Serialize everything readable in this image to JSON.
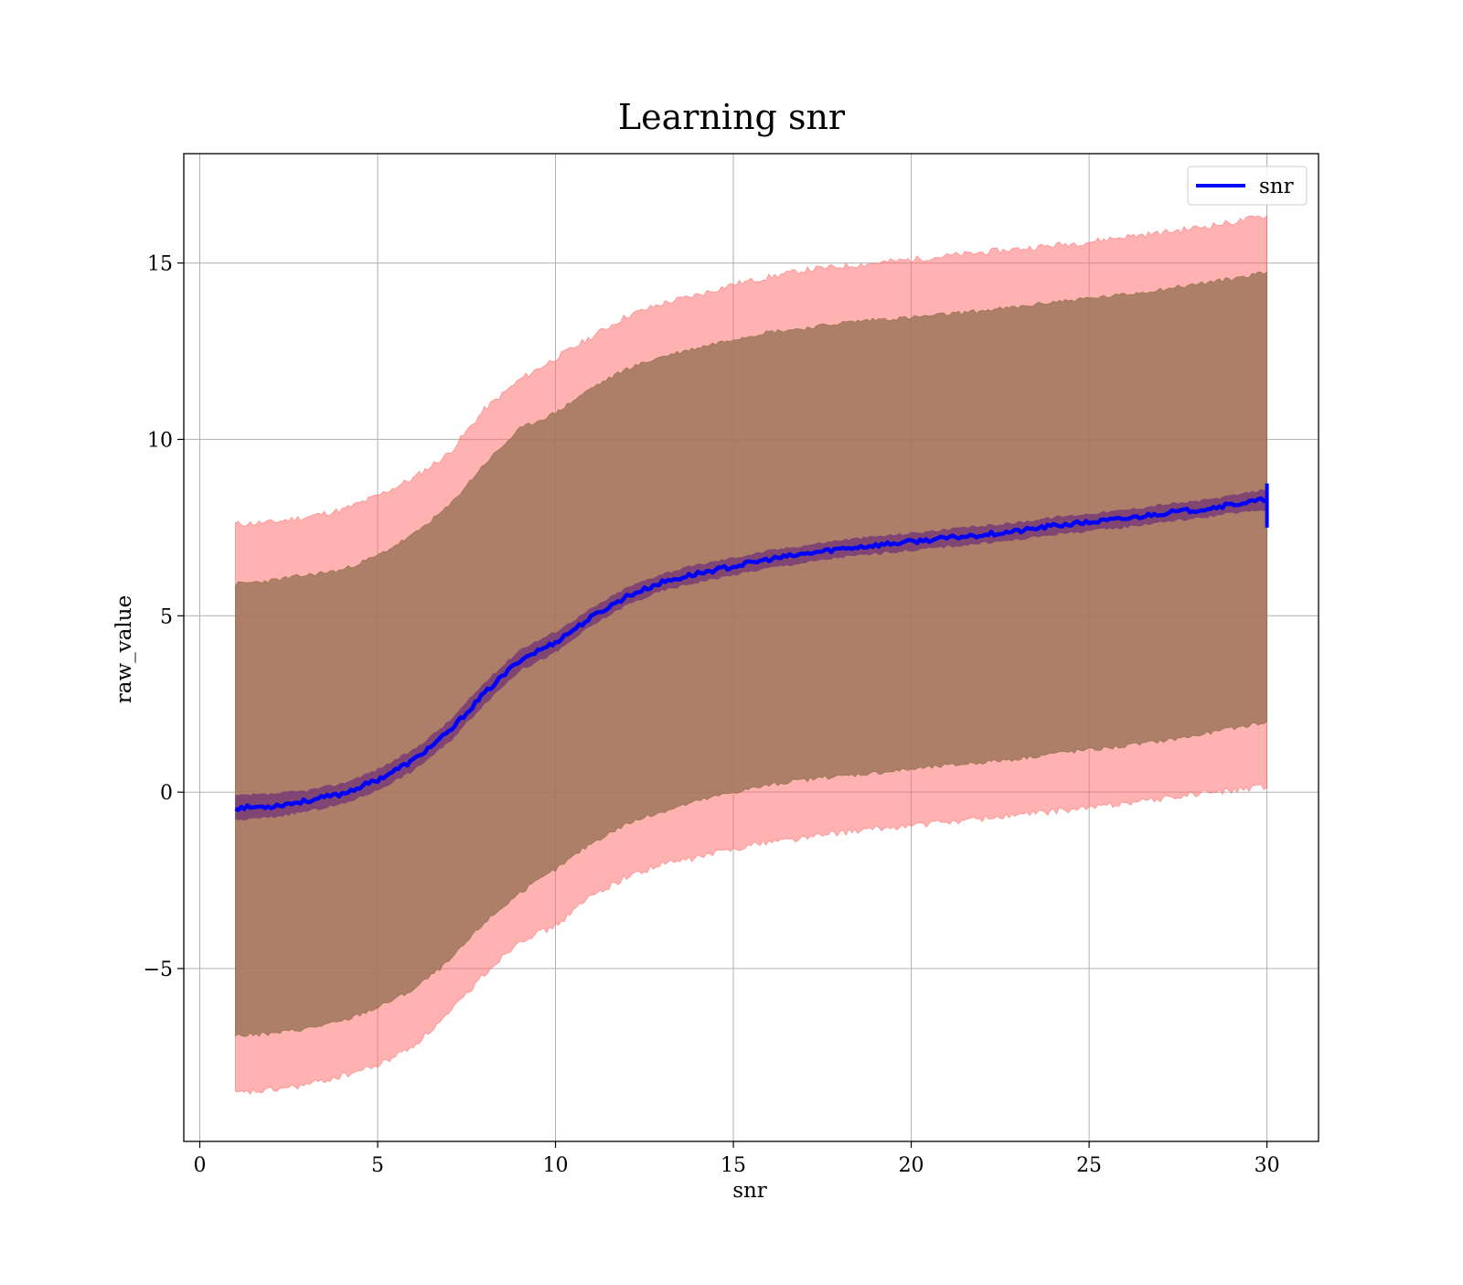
{
  "chart_data": {
    "type": "line",
    "title": "Learning snr",
    "xlabel": "snr",
    "ylabel": "raw_value",
    "xlim": [
      -0.45,
      31.45
    ],
    "ylim": [
      -9.9,
      18.1
    ],
    "x_ticks": [
      {
        "value": 0,
        "label": "0"
      },
      {
        "value": 5,
        "label": "5"
      },
      {
        "value": 10,
        "label": "10"
      },
      {
        "value": 15,
        "label": "15"
      },
      {
        "value": 20,
        "label": "20"
      },
      {
        "value": 25,
        "label": "25"
      },
      {
        "value": 30,
        "label": "30"
      }
    ],
    "y_ticks": [
      {
        "value": -5,
        "label": "−5"
      },
      {
        "value": 0,
        "label": "0"
      },
      {
        "value": 5,
        "label": "5"
      },
      {
        "value": 10,
        "label": "10"
      },
      {
        "value": 15,
        "label": "15"
      }
    ],
    "grid": true,
    "legend_position": "top-right",
    "colors": {
      "line": "#0000ff",
      "outer_band": "#ff6666",
      "inner_band": "#a0755a",
      "narrow_band": "#4b0082"
    },
    "series": [
      {
        "name": "snr",
        "x": [
          1,
          2,
          3,
          4,
          5,
          6,
          7,
          8,
          9,
          10,
          11,
          12,
          13,
          14,
          15,
          16,
          17,
          18,
          19,
          20,
          21,
          22,
          23,
          24,
          25,
          26,
          27,
          28,
          29,
          30
        ],
        "values": [
          -0.45,
          -0.4,
          -0.25,
          -0.05,
          0.35,
          0.9,
          1.7,
          2.8,
          3.75,
          4.25,
          4.95,
          5.55,
          5.95,
          6.2,
          6.4,
          6.6,
          6.75,
          6.9,
          7.0,
          7.1,
          7.2,
          7.3,
          7.4,
          7.55,
          7.65,
          7.75,
          7.9,
          8.0,
          8.15,
          8.3
        ],
        "band_narrow_lower": [
          -0.8,
          -0.72,
          -0.55,
          -0.35,
          0.05,
          0.6,
          1.4,
          2.5,
          3.45,
          3.95,
          4.7,
          5.3,
          5.7,
          5.95,
          6.15,
          6.35,
          6.5,
          6.65,
          6.75,
          6.85,
          6.95,
          7.05,
          7.15,
          7.3,
          7.4,
          7.5,
          7.65,
          7.75,
          7.9,
          8.0
        ],
        "band_narrow_upper": [
          -0.1,
          -0.05,
          0.05,
          0.25,
          0.65,
          1.2,
          2.0,
          3.1,
          4.05,
          4.55,
          5.2,
          5.8,
          6.2,
          6.45,
          6.65,
          6.85,
          7.0,
          7.15,
          7.25,
          7.35,
          7.45,
          7.55,
          7.65,
          7.8,
          7.9,
          8.0,
          8.15,
          8.25,
          8.4,
          8.6
        ],
        "band_inner_lower": [
          -6.9,
          -6.85,
          -6.7,
          -6.5,
          -6.1,
          -5.6,
          -4.8,
          -3.7,
          -2.85,
          -2.2,
          -1.45,
          -0.9,
          -0.55,
          -0.25,
          0.0,
          0.2,
          0.35,
          0.45,
          0.55,
          0.65,
          0.75,
          0.85,
          0.95,
          1.1,
          1.2,
          1.3,
          1.45,
          1.6,
          1.8,
          2.0
        ],
        "band_inner_upper": [
          5.9,
          6.0,
          6.15,
          6.3,
          6.7,
          7.3,
          8.1,
          9.3,
          10.3,
          10.75,
          11.45,
          12.0,
          12.35,
          12.6,
          12.85,
          13.05,
          13.15,
          13.3,
          13.4,
          13.45,
          13.55,
          13.65,
          13.75,
          13.9,
          14.0,
          14.1,
          14.25,
          14.4,
          14.55,
          14.75
        ],
        "band_outer_lower": [
          -8.55,
          -8.45,
          -8.3,
          -8.05,
          -7.75,
          -7.2,
          -6.3,
          -5.15,
          -4.2,
          -3.8,
          -2.95,
          -2.4,
          -2.05,
          -1.85,
          -1.6,
          -1.4,
          -1.3,
          -1.15,
          -1.05,
          -0.95,
          -0.85,
          -0.75,
          -0.65,
          -0.55,
          -0.45,
          -0.3,
          -0.2,
          -0.05,
          0.05,
          0.15
        ],
        "band_outer_upper": [
          7.6,
          7.65,
          7.8,
          8.0,
          8.4,
          8.9,
          9.6,
          10.85,
          11.7,
          12.3,
          12.9,
          13.5,
          13.85,
          14.1,
          14.4,
          14.6,
          14.8,
          14.9,
          15.0,
          15.1,
          15.2,
          15.3,
          15.4,
          15.5,
          15.6,
          15.75,
          15.85,
          16.0,
          16.15,
          16.35
        ]
      }
    ]
  }
}
